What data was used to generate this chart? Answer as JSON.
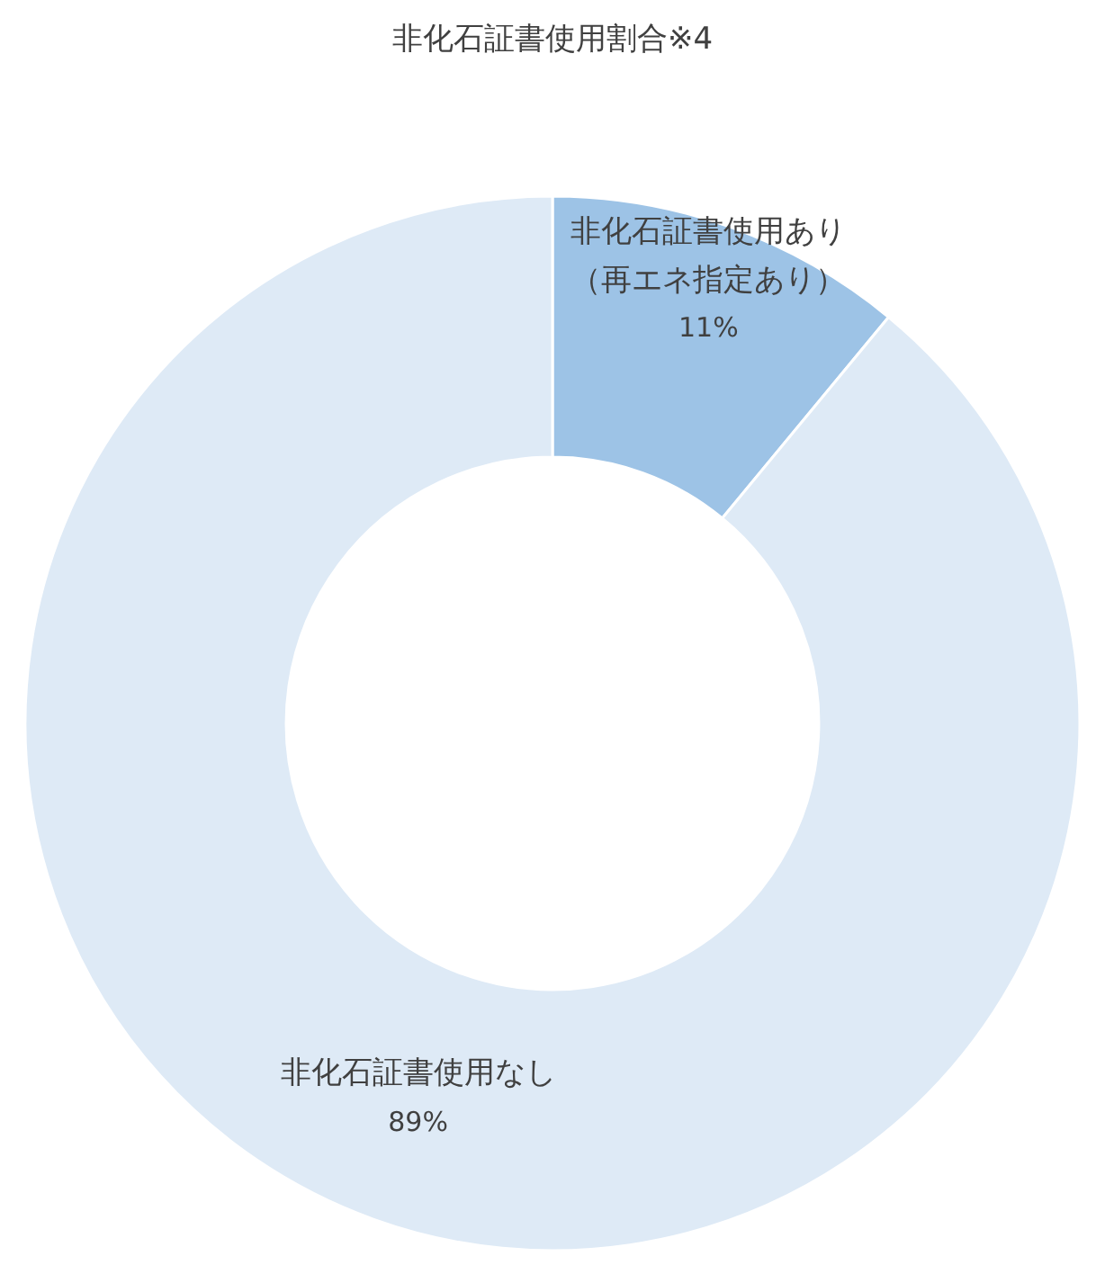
{
  "chart_data": {
    "type": "donut",
    "title": "非化石証書使用割合※4",
    "categories": [
      "非化石証書使用あり（再エネ指定あり）",
      "非化石証書使用なし"
    ],
    "values": [
      11,
      89
    ],
    "colors": [
      "#9dc3e6",
      "#deeaf6"
    ],
    "value_labels": [
      "11%",
      "89%"
    ]
  }
}
